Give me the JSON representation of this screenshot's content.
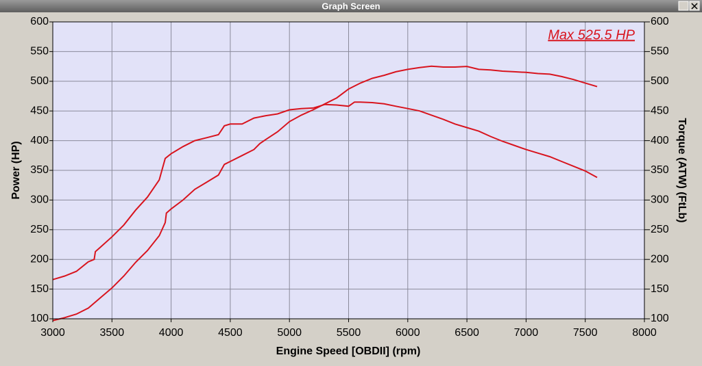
{
  "window": {
    "title": "Graph Screen"
  },
  "chart_data": {
    "type": "line",
    "xlabel": "Engine Speed [OBDII] (rpm)",
    "ylabel": "Power (HP)",
    "y2label": "Torque (ATW) (FtLb)",
    "annotation": "Max 525.5 HP",
    "xlim": [
      3000,
      8000
    ],
    "xticks": [
      3000,
      3500,
      4000,
      4500,
      5000,
      5500,
      6000,
      6500,
      7000,
      7500,
      8000
    ],
    "ylim": [
      100,
      600
    ],
    "yticks": [
      100,
      150,
      200,
      250,
      300,
      350,
      400,
      450,
      500,
      550,
      600
    ],
    "y2lim": [
      100,
      600
    ],
    "y2ticks": [
      100,
      150,
      200,
      250,
      300,
      350,
      400,
      450,
      500,
      550,
      600
    ],
    "grid": true,
    "series": [
      {
        "color": "#d8141e",
        "x": [
          3000,
          3100,
          3200,
          3300,
          3400,
          3500,
          3600,
          3700,
          3800,
          3900,
          3950,
          3960,
          4000,
          4100,
          4200,
          4300,
          4400,
          4450,
          4500,
          4600,
          4700,
          4750,
          4800,
          4900,
          5000,
          5100,
          5200,
          5300,
          5400,
          5500,
          5600,
          5700,
          5800,
          5900,
          6000,
          6100,
          6200,
          6300,
          6400,
          6500,
          6600,
          6700,
          6800,
          6900,
          7000,
          7100,
          7200,
          7300,
          7400,
          7500,
          7600
        ],
        "values": [
          97,
          102,
          108,
          118,
          135,
          152,
          172,
          195,
          215,
          240,
          262,
          278,
          285,
          300,
          318,
          330,
          342,
          360,
          365,
          375,
          385,
          395,
          402,
          415,
          432,
          443,
          452,
          462,
          472,
          487,
          497,
          505,
          510,
          516,
          520,
          523,
          525.5,
          524,
          524,
          525,
          520,
          519,
          517,
          516,
          515,
          513,
          512,
          508,
          503,
          497,
          491
        ]
      },
      {
        "color": "#d8141e",
        "axis": "y2",
        "x": [
          3000,
          3100,
          3200,
          3300,
          3350,
          3360,
          3400,
          3500,
          3600,
          3700,
          3800,
          3900,
          3950,
          4000,
          4100,
          4200,
          4300,
          4400,
          4450,
          4500,
          4600,
          4700,
          4800,
          4900,
          5000,
          5100,
          5200,
          5300,
          5400,
          5500,
          5550,
          5600,
          5700,
          5800,
          5900,
          6000,
          6100,
          6200,
          6300,
          6400,
          6500,
          6600,
          6700,
          6800,
          6900,
          7000,
          7100,
          7200,
          7300,
          7400,
          7500,
          7600
        ],
        "values": [
          166,
          172,
          180,
          196,
          200,
          213,
          220,
          238,
          258,
          283,
          305,
          334,
          370,
          378,
          390,
          400,
          405,
          410,
          425,
          428,
          428,
          438,
          442,
          445,
          452,
          454,
          455,
          461,
          460,
          458,
          465,
          465,
          464,
          462,
          458,
          454,
          450,
          443,
          436,
          428,
          422,
          416,
          407,
          399,
          392,
          385,
          379,
          373,
          365,
          357,
          349,
          338
        ]
      }
    ]
  }
}
